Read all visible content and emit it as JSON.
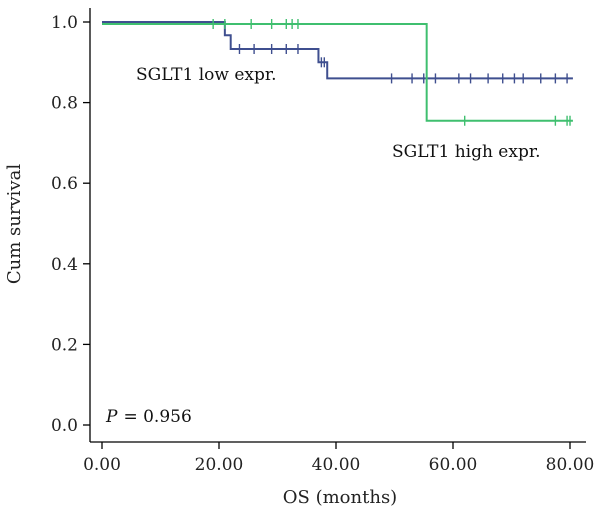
{
  "chart_data": {
    "type": "line",
    "subtype": "kaplan-meier",
    "title": "",
    "xlabel": "OS (months)",
    "ylabel": "Cum survival",
    "xlim": [
      0,
      80
    ],
    "ylim": [
      0,
      1
    ],
    "x_ticks": [
      0,
      20,
      40,
      60,
      80
    ],
    "x_tick_labels": [
      "0.00",
      "20.00",
      "40.00",
      "60.00",
      "80.00"
    ],
    "y_ticks": [
      0,
      0.2,
      0.4,
      0.6,
      0.8,
      1.0
    ],
    "y_tick_labels": [
      "0.0",
      "0.2",
      "0.4",
      "0.6",
      "0.8",
      "1.0"
    ],
    "grid": false,
    "p_value": {
      "label": "P",
      "text": "= 0.956"
    },
    "series": [
      {
        "name": "SGLT1 low expr.",
        "color": "#3f4f8f",
        "steps": [
          [
            0,
            1.0
          ],
          [
            21,
            0.967
          ],
          [
            22,
            0.933
          ],
          [
            37,
            0.9
          ],
          [
            38.5,
            0.86
          ],
          [
            80.5,
            0.86
          ]
        ],
        "censored": [
          [
            23.5,
            0.933
          ],
          [
            26,
            0.933
          ],
          [
            29,
            0.933
          ],
          [
            31.5,
            0.933
          ],
          [
            33.5,
            0.933
          ],
          [
            37.5,
            0.9
          ],
          [
            38,
            0.9
          ],
          [
            49.5,
            0.86
          ],
          [
            53,
            0.86
          ],
          [
            55,
            0.86
          ],
          [
            57,
            0.86
          ],
          [
            61,
            0.86
          ],
          [
            63,
            0.86
          ],
          [
            66,
            0.86
          ],
          [
            68.5,
            0.86
          ],
          [
            70.5,
            0.86
          ],
          [
            72,
            0.86
          ],
          [
            75,
            0.86
          ],
          [
            77.5,
            0.86
          ],
          [
            79.5,
            0.86
          ]
        ]
      },
      {
        "name": "SGLT1 high expr.",
        "color": "#3fbf6f",
        "steps": [
          [
            0,
            0.995
          ],
          [
            55.5,
            0.995
          ],
          [
            55.5,
            0.755
          ],
          [
            80.5,
            0.755
          ]
        ],
        "censored": [
          [
            19,
            0.995
          ],
          [
            21,
            0.995
          ],
          [
            25.5,
            0.995
          ],
          [
            29,
            0.995
          ],
          [
            31.5,
            0.995
          ],
          [
            32.5,
            0.995
          ],
          [
            33.5,
            0.995
          ],
          [
            62,
            0.755
          ],
          [
            77.5,
            0.755
          ],
          [
            79.5,
            0.755
          ],
          [
            80,
            0.755
          ]
        ]
      }
    ],
    "annotations": [
      {
        "text": "SGLT1 low expr.",
        "series": "SGLT1 low expr."
      },
      {
        "text": "SGLT1 high expr.",
        "series": "SGLT1 high expr."
      }
    ]
  }
}
